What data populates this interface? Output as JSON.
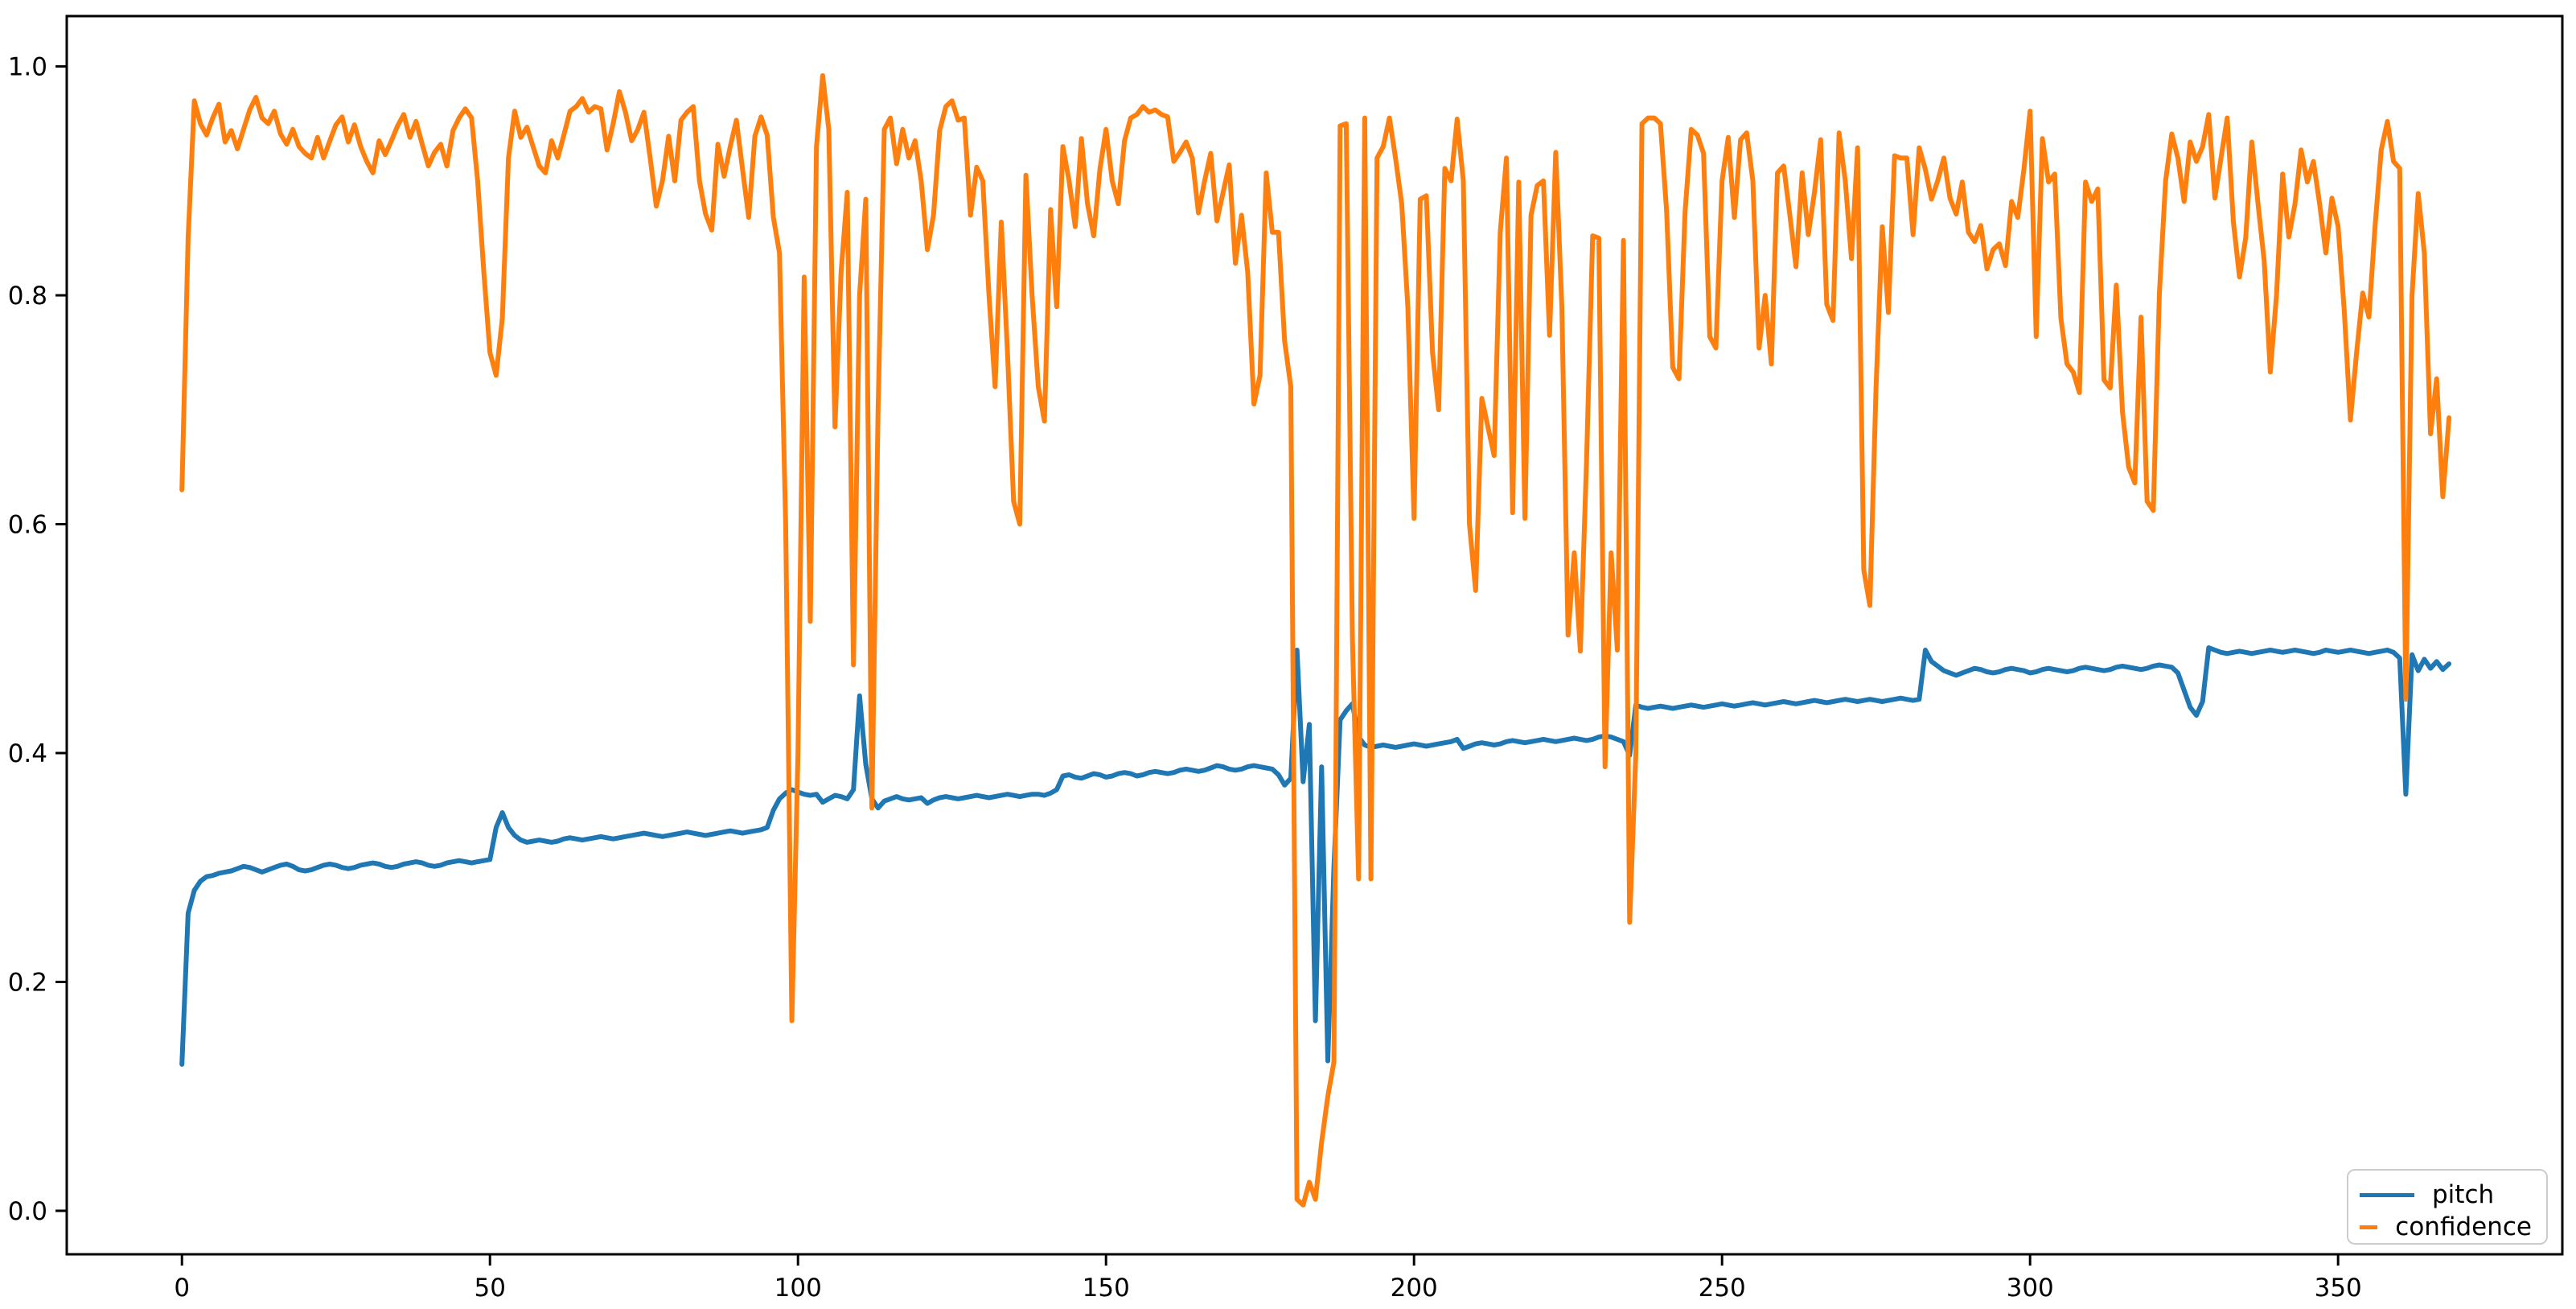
{
  "chart_data": {
    "type": "line",
    "title": "",
    "xlabel": "",
    "ylabel": "",
    "grid": false,
    "background_color": "#ffffff",
    "axes_color": "#000000",
    "xlim": [
      -18.7,
      386.4
    ],
    "ylim": [
      -0.038,
      1.044
    ],
    "xticks": [
      0,
      50,
      100,
      150,
      200,
      250,
      300,
      350
    ],
    "xtick_labels": [
      "0",
      "50",
      "100",
      "150",
      "200",
      "250",
      "300",
      "350"
    ],
    "yticks": [
      0.0,
      0.2,
      0.4,
      0.6,
      0.8,
      1.0
    ],
    "ytick_labels": [
      "0.0",
      "0.2",
      "0.4",
      "0.6",
      "0.8",
      "1.0"
    ],
    "legend": {
      "position": "lower right",
      "entries": [
        "pitch",
        "confidence"
      ]
    },
    "x_start": 0,
    "x_step": 1,
    "series": [
      {
        "name": "pitch",
        "color": "#1f77b4",
        "values": [
          0.128,
          0.26,
          0.28,
          0.288,
          0.292,
          0.293,
          0.295,
          0.296,
          0.297,
          0.299,
          0.301,
          0.3,
          0.298,
          0.296,
          0.298,
          0.3,
          0.302,
          0.303,
          0.301,
          0.298,
          0.297,
          0.298,
          0.3,
          0.302,
          0.303,
          0.302,
          0.3,
          0.299,
          0.3,
          0.302,
          0.303,
          0.304,
          0.303,
          0.301,
          0.3,
          0.301,
          0.303,
          0.304,
          0.305,
          0.304,
          0.302,
          0.301,
          0.302,
          0.304,
          0.305,
          0.306,
          0.305,
          0.304,
          0.305,
          0.306,
          0.307,
          0.335,
          0.348,
          0.335,
          0.328,
          0.324,
          0.322,
          0.323,
          0.324,
          0.323,
          0.322,
          0.323,
          0.325,
          0.326,
          0.325,
          0.324,
          0.325,
          0.326,
          0.327,
          0.326,
          0.325,
          0.326,
          0.327,
          0.328,
          0.329,
          0.33,
          0.329,
          0.328,
          0.327,
          0.328,
          0.329,
          0.33,
          0.331,
          0.33,
          0.329,
          0.328,
          0.329,
          0.33,
          0.331,
          0.332,
          0.331,
          0.33,
          0.331,
          0.332,
          0.333,
          0.335,
          0.35,
          0.36,
          0.365,
          0.368,
          0.366,
          0.364,
          0.363,
          0.364,
          0.357,
          0.36,
          0.363,
          0.362,
          0.36,
          0.368,
          0.45,
          0.39,
          0.36,
          0.352,
          0.358,
          0.36,
          0.362,
          0.36,
          0.359,
          0.36,
          0.361,
          0.356,
          0.359,
          0.361,
          0.362,
          0.361,
          0.36,
          0.361,
          0.362,
          0.363,
          0.362,
          0.361,
          0.362,
          0.363,
          0.364,
          0.363,
          0.362,
          0.363,
          0.364,
          0.364,
          0.363,
          0.365,
          0.368,
          0.38,
          0.381,
          0.379,
          0.378,
          0.38,
          0.382,
          0.381,
          0.379,
          0.38,
          0.382,
          0.383,
          0.382,
          0.38,
          0.381,
          0.383,
          0.384,
          0.383,
          0.382,
          0.383,
          0.385,
          0.386,
          0.385,
          0.384,
          0.385,
          0.387,
          0.389,
          0.388,
          0.386,
          0.385,
          0.386,
          0.388,
          0.389,
          0.388,
          0.387,
          0.386,
          0.381,
          0.372,
          0.378,
          0.49,
          0.375,
          0.425,
          0.166,
          0.388,
          0.131,
          0.3,
          0.429,
          0.437,
          0.443,
          0.414,
          0.407,
          0.405,
          0.406,
          0.407,
          0.406,
          0.405,
          0.406,
          0.407,
          0.408,
          0.407,
          0.406,
          0.407,
          0.408,
          0.409,
          0.41,
          0.412,
          0.404,
          0.406,
          0.408,
          0.409,
          0.408,
          0.407,
          0.408,
          0.41,
          0.411,
          0.41,
          0.409,
          0.41,
          0.411,
          0.412,
          0.411,
          0.41,
          0.411,
          0.412,
          0.413,
          0.412,
          0.411,
          0.412,
          0.414,
          0.415,
          0.414,
          0.412,
          0.41,
          0.398,
          0.442,
          0.44,
          0.439,
          0.44,
          0.441,
          0.44,
          0.439,
          0.44,
          0.441,
          0.442,
          0.441,
          0.44,
          0.441,
          0.442,
          0.443,
          0.442,
          0.441,
          0.442,
          0.443,
          0.444,
          0.443,
          0.442,
          0.443,
          0.444,
          0.445,
          0.444,
          0.443,
          0.444,
          0.445,
          0.446,
          0.445,
          0.444,
          0.445,
          0.446,
          0.447,
          0.446,
          0.445,
          0.446,
          0.447,
          0.446,
          0.445,
          0.446,
          0.447,
          0.448,
          0.447,
          0.446,
          0.447,
          0.49,
          0.48,
          0.476,
          0.472,
          0.47,
          0.468,
          0.47,
          0.472,
          0.474,
          0.473,
          0.471,
          0.47,
          0.471,
          0.473,
          0.474,
          0.473,
          0.472,
          0.47,
          0.471,
          0.473,
          0.474,
          0.473,
          0.472,
          0.471,
          0.472,
          0.474,
          0.475,
          0.474,
          0.473,
          0.472,
          0.473,
          0.475,
          0.476,
          0.475,
          0.474,
          0.473,
          0.474,
          0.476,
          0.477,
          0.476,
          0.475,
          0.47,
          0.455,
          0.44,
          0.433,
          0.445,
          0.492,
          0.49,
          0.488,
          0.487,
          0.488,
          0.489,
          0.488,
          0.487,
          0.488,
          0.489,
          0.49,
          0.489,
          0.488,
          0.489,
          0.49,
          0.489,
          0.488,
          0.487,
          0.488,
          0.49,
          0.489,
          0.488,
          0.489,
          0.49,
          0.489,
          0.488,
          0.487,
          0.488,
          0.489,
          0.49,
          0.488,
          0.483,
          0.364,
          0.486,
          0.472,
          0.482,
          0.474,
          0.48,
          0.473,
          0.478
        ]
      },
      {
        "name": "confidence",
        "color": "#ff7f0e",
        "values": [
          0.63,
          0.85,
          0.97,
          0.95,
          0.94,
          0.955,
          0.967,
          0.934,
          0.944,
          0.928,
          0.945,
          0.962,
          0.973,
          0.955,
          0.95,
          0.961,
          0.941,
          0.932,
          0.945,
          0.93,
          0.924,
          0.92,
          0.938,
          0.92,
          0.935,
          0.949,
          0.956,
          0.934,
          0.949,
          0.93,
          0.917,
          0.907,
          0.935,
          0.923,
          0.935,
          0.948,
          0.958,
          0.938,
          0.952,
          0.932,
          0.913,
          0.925,
          0.932,
          0.913,
          0.944,
          0.955,
          0.963,
          0.955,
          0.9,
          0.82,
          0.75,
          0.73,
          0.78,
          0.92,
          0.961,
          0.938,
          0.947,
          0.93,
          0.913,
          0.907,
          0.935,
          0.92,
          0.94,
          0.961,
          0.965,
          0.972,
          0.96,
          0.965,
          0.963,
          0.927,
          0.95,
          0.978,
          0.96,
          0.935,
          0.945,
          0.96,
          0.92,
          0.878,
          0.9,
          0.939,
          0.9,
          0.953,
          0.96,
          0.965,
          0.9,
          0.871,
          0.857,
          0.932,
          0.904,
          0.93,
          0.953,
          0.91,
          0.868,
          0.939,
          0.956,
          0.94,
          0.868,
          0.837,
          0.6,
          0.166,
          0.4,
          0.816,
          0.515,
          0.93,
          0.992,
          0.945,
          0.685,
          0.82,
          0.89,
          0.477,
          0.8,
          0.884,
          0.352,
          0.7,
          0.945,
          0.955,
          0.915,
          0.945,
          0.92,
          0.935,
          0.9,
          0.84,
          0.87,
          0.944,
          0.965,
          0.97,
          0.953,
          0.955,
          0.87,
          0.912,
          0.9,
          0.8,
          0.72,
          0.864,
          0.75,
          0.62,
          0.6,
          0.905,
          0.8,
          0.72,
          0.69,
          0.875,
          0.79,
          0.93,
          0.9,
          0.86,
          0.937,
          0.88,
          0.852,
          0.91,
          0.945,
          0.9,
          0.88,
          0.935,
          0.955,
          0.958,
          0.965,
          0.96,
          0.962,
          0.958,
          0.956,
          0.917,
          0.925,
          0.934,
          0.92,
          0.872,
          0.9,
          0.924,
          0.865,
          0.89,
          0.914,
          0.828,
          0.87,
          0.82,
          0.705,
          0.73,
          0.907,
          0.855,
          0.855,
          0.76,
          0.72,
          0.01,
          0.005,
          0.025,
          0.01,
          0.06,
          0.1,
          0.13,
          0.948,
          0.95,
          0.5,
          0.29,
          0.955,
          0.29,
          0.92,
          0.93,
          0.955,
          0.92,
          0.88,
          0.79,
          0.605,
          0.884,
          0.887,
          0.75,
          0.7,
          0.911,
          0.9,
          0.954,
          0.9,
          0.6,
          0.542,
          0.71,
          0.685,
          0.66,
          0.855,
          0.92,
          0.61,
          0.899,
          0.605,
          0.87,
          0.896,
          0.9,
          0.765,
          0.925,
          0.79,
          0.503,
          0.575,
          0.489,
          0.655,
          0.852,
          0.85,
          0.388,
          0.575,
          0.49,
          0.848,
          0.252,
          0.4,
          0.95,
          0.955,
          0.955,
          0.95,
          0.873,
          0.737,
          0.727,
          0.873,
          0.945,
          0.94,
          0.924,
          0.764,
          0.754,
          0.9,
          0.938,
          0.868,
          0.936,
          0.942,
          0.9,
          0.754,
          0.8,
          0.74,
          0.907,
          0.913,
          0.87,
          0.825,
          0.907,
          0.853,
          0.89,
          0.936,
          0.792,
          0.778,
          0.942,
          0.9,
          0.832,
          0.929,
          0.56,
          0.529,
          0.72,
          0.86,
          0.785,
          0.922,
          0.92,
          0.92,
          0.853,
          0.929,
          0.91,
          0.884,
          0.9,
          0.92,
          0.885,
          0.871,
          0.899,
          0.855,
          0.847,
          0.861,
          0.823,
          0.84,
          0.845,
          0.826,
          0.882,
          0.868,
          0.91,
          0.961,
          0.764,
          0.937,
          0.899,
          0.906,
          0.78,
          0.74,
          0.733,
          0.715,
          0.899,
          0.882,
          0.893,
          0.726,
          0.719,
          0.809,
          0.698,
          0.65,
          0.636,
          0.781,
          0.62,
          0.612,
          0.802,
          0.9,
          0.941,
          0.92,
          0.882,
          0.934,
          0.917,
          0.93,
          0.958,
          0.885,
          0.92,
          0.955,
          0.864,
          0.816,
          0.85,
          0.934,
          0.88,
          0.83,
          0.733,
          0.8,
          0.906,
          0.851,
          0.88,
          0.927,
          0.899,
          0.917,
          0.88,
          0.837,
          0.885,
          0.86,
          0.787,
          0.691,
          0.75,
          0.802,
          0.781,
          0.86,
          0.927,
          0.952,
          0.917,
          0.911,
          0.447,
          0.8,
          0.889,
          0.837,
          0.679,
          0.727,
          0.624,
          0.693
        ]
      }
    ]
  }
}
